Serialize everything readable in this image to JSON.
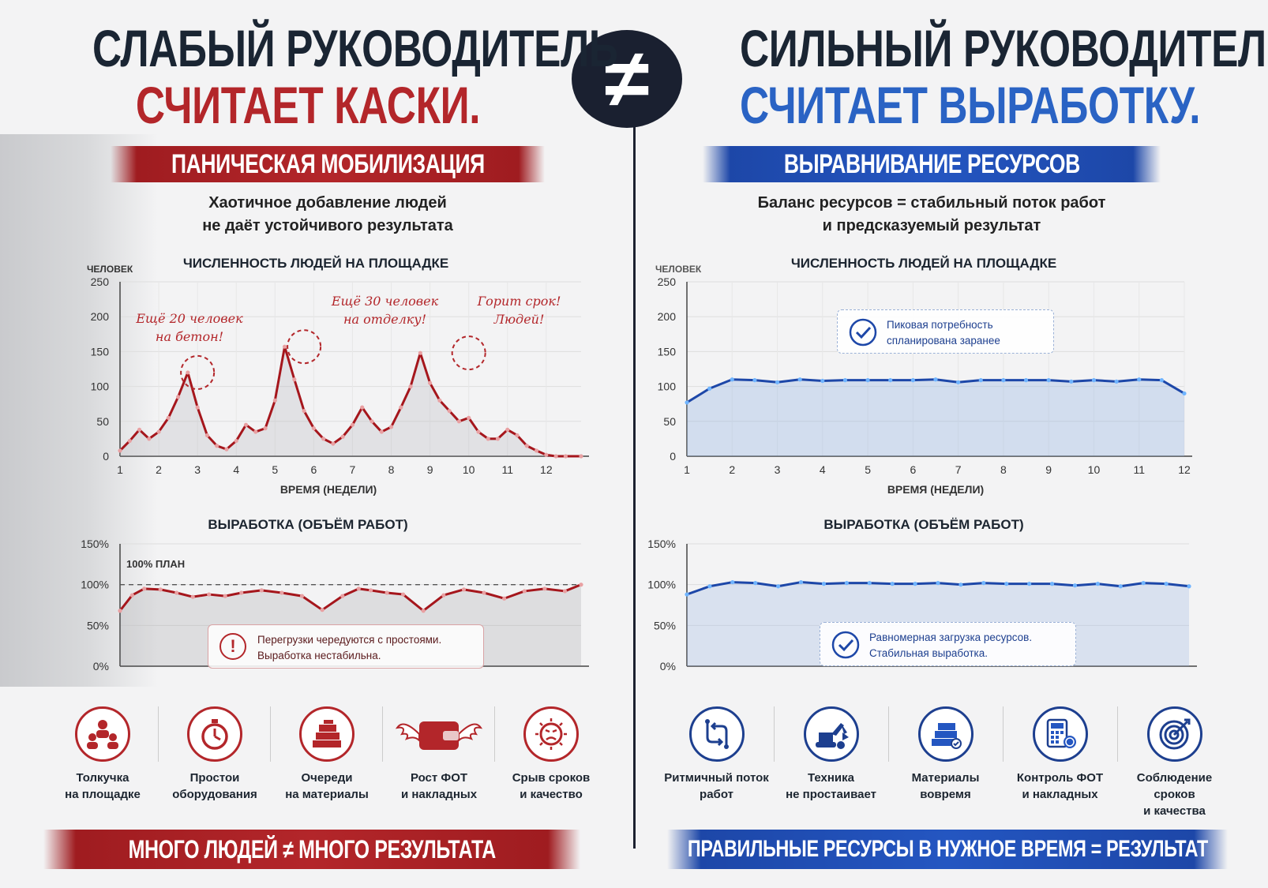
{
  "center_symbol": "≠",
  "left": {
    "title_line1": "СЛАБЫЙ РУКОВОДИТЕЛЬ",
    "title_line2": "СЧИТАЕТ КАСКИ.",
    "banner": "ПАНИЧЕСКАЯ МОБИЛИЗАЦИЯ",
    "subtitle_line1": "Хаотичное добавление людей",
    "subtitle_line2": "не даёт устойчивого результата",
    "people_chart": {
      "title": "ЧИСЛЕННОСТЬ ЛЮДЕЙ НА ПЛОЩАДКЕ",
      "ylabel": "ЧЕЛОВЕК",
      "xlabel": "ВРЕМЯ (НЕДЕЛИ)",
      "annotations": [
        {
          "line1": "Ещё 20 человек",
          "line2": "на бетон!"
        },
        {
          "line1": "Ещё 30 человек",
          "line2": "на отделку!"
        },
        {
          "line1": "Горит срок!",
          "line2": "Людей!"
        }
      ]
    },
    "output_chart": {
      "title": "ВЫРАБОТКА (ОБЪЁМ РАБОТ)",
      "plan_label": "100% ПЛАН",
      "note_line1": "Перегрузки чередуются с простоями.",
      "note_line2": "Выработка нестабильна."
    },
    "icons": [
      {
        "icon": "crowd-icon",
        "line1": "Толкучка",
        "line2": "на площадке"
      },
      {
        "icon": "stopwatch-icon",
        "line1": "Простои",
        "line2": "оборудования"
      },
      {
        "icon": "materials-stack-icon",
        "line1": "Очереди",
        "line2": "на материалы"
      },
      {
        "icon": "flying-wallet-icon",
        "line1": "Рост ФОТ",
        "line2": "и накладных"
      },
      {
        "icon": "angry-face-icon",
        "line1": "Срыв сроков",
        "line2": "и качество"
      }
    ],
    "bottom_banner": "МНОГО ЛЮДЕЙ ≠ МНОГО РЕЗУЛЬТАТА"
  },
  "right": {
    "title_line1": "СИЛЬНЫЙ РУКОВОДИТЕЛЬ",
    "title_line2": "СЧИТАЕТ ВЫРАБОТКУ.",
    "banner": "ВЫРАВНИВАНИЕ РЕСУРСОВ",
    "subtitle_line1": "Баланс ресурсов = стабильный поток работ",
    "subtitle_line2": "и предсказуемый результат",
    "people_chart": {
      "title": "ЧИСЛЕННОСТЬ ЛЮДЕЙ НА ПЛОЩАДКЕ",
      "ylabel": "ЧЕЛОВЕК",
      "xlabel": "ВРЕМЯ (НЕДЕЛИ)",
      "note_line1": "Пиковая потребность",
      "note_line2": "спланирована заранее"
    },
    "output_chart": {
      "title": "ВЫРАБОТКА (ОБЪЁМ РАБОТ)",
      "note_line1": "Равномерная загрузка ресурсов.",
      "note_line2": "Стабильная выработка."
    },
    "icons": [
      {
        "icon": "flow-icon",
        "line1": "Ритмичный поток",
        "line2": "работ"
      },
      {
        "icon": "excavator-icon",
        "line1": "Техника",
        "line2": "не простаивает"
      },
      {
        "icon": "materials-icon",
        "line1": "Материалы",
        "line2": "вовремя"
      },
      {
        "icon": "calculator-coins-icon",
        "line1": "Контроль ФОТ",
        "line2": "и накладных"
      },
      {
        "icon": "target-icon",
        "line1": "Соблюдение сроков",
        "line2": "и качества"
      }
    ],
    "bottom_banner": "ПРАВИЛЬНЫЕ РЕСУРСЫ В НУЖНОЕ ВРЕМЯ = РЕЗУЛЬТАТ"
  },
  "colors": {
    "red": "#b3262a",
    "blue": "#2456c1",
    "dark": "#1a2533"
  },
  "chart_data": [
    {
      "id": "left-people",
      "type": "line",
      "title": "ЧИСЛЕННОСТЬ ЛЮДЕЙ НА ПЛОЩАДКЕ",
      "xlabel": "ВРЕМЯ (НЕДЕЛИ)",
      "ylabel": "ЧЕЛОВЕК",
      "xlim": [
        1,
        12.9
      ],
      "ylim": [
        0,
        250
      ],
      "yticks": [
        0,
        50,
        100,
        150,
        200,
        250
      ],
      "xticks": [
        1,
        2,
        3,
        4,
        5,
        6,
        7,
        8,
        9,
        10,
        11,
        12
      ],
      "x": [
        1,
        1.25,
        1.5,
        1.75,
        2,
        2.25,
        2.5,
        2.75,
        3,
        3.25,
        3.5,
        3.75,
        4,
        4.25,
        4.5,
        4.75,
        5,
        5.25,
        5.5,
        5.75,
        6,
        6.25,
        6.5,
        6.75,
        7,
        7.25,
        7.5,
        7.75,
        8,
        8.25,
        8.5,
        8.75,
        9,
        9.25,
        9.5,
        9.75,
        10,
        10.25,
        10.5,
        10.75,
        11,
        11.25,
        11.5,
        11.75,
        12,
        12.25,
        12.5,
        12.9
      ],
      "y": [
        8,
        22,
        38,
        25,
        35,
        55,
        85,
        120,
        70,
        30,
        15,
        10,
        22,
        45,
        35,
        40,
        80,
        157,
        110,
        65,
        40,
        25,
        18,
        28,
        45,
        70,
        50,
        35,
        42,
        70,
        100,
        148,
        105,
        80,
        65,
        50,
        55,
        35,
        25,
        25,
        38,
        30,
        15,
        8,
        2,
        0,
        0,
        0
      ],
      "grid": true
    },
    {
      "id": "left-output",
      "type": "line",
      "title": "ВЫРАБОТКА (ОБЪЁМ РАБОТ)",
      "ylim": [
        0,
        150
      ],
      "yticks": [
        "0%",
        "50%",
        "100%",
        "150%"
      ],
      "plan_line": 100,
      "x": [
        1,
        1.3,
        1.6,
        2,
        2.4,
        2.8,
        3.2,
        3.6,
        4,
        4.5,
        5,
        5.5,
        6,
        6.5,
        6.9,
        7.2,
        7.6,
        8,
        8.5,
        9,
        9.5,
        10,
        10.5,
        11,
        11.5,
        12,
        12.4
      ],
      "y": [
        68,
        87,
        95,
        94,
        90,
        85,
        88,
        86,
        90,
        93,
        90,
        86,
        69,
        86,
        95,
        93,
        90,
        88,
        68,
        87,
        94,
        90,
        83,
        92,
        95,
        92,
        100
      ],
      "grid": true
    },
    {
      "id": "right-people",
      "type": "area",
      "title": "ЧИСЛЕННОСТЬ ЛЮДЕЙ НА ПЛОЩАДКЕ",
      "xlabel": "ВРЕМЯ (НЕДЕЛИ)",
      "ylabel": "ЧЕЛОВЕК",
      "xlim": [
        1,
        12
      ],
      "ylim": [
        0,
        250
      ],
      "yticks": [
        0,
        50,
        100,
        150,
        200,
        250
      ],
      "xticks": [
        1,
        2,
        3,
        4,
        5,
        6,
        7,
        8,
        9,
        10,
        11,
        12
      ],
      "x": [
        1,
        1.5,
        2,
        2.5,
        3,
        3.5,
        4,
        4.5,
        5,
        5.5,
        6,
        6.5,
        7,
        7.5,
        8,
        8.5,
        9,
        9.5,
        10,
        10.5,
        11,
        11.5,
        12
      ],
      "y": [
        77,
        97,
        110,
        109,
        106,
        110,
        108,
        109,
        109,
        109,
        109,
        110,
        106,
        109,
        109,
        109,
        109,
        107,
        109,
        107,
        110,
        109,
        90
      ],
      "grid": true
    },
    {
      "id": "right-output",
      "type": "area",
      "title": "ВЫРАБОТКА (ОБЪЁМ РАБОТ)",
      "ylim": [
        0,
        150
      ],
      "yticks": [
        "0%",
        "50%",
        "100%",
        "150%"
      ],
      "x": [
        1,
        1.5,
        2,
        2.5,
        3,
        3.5,
        4,
        4.5,
        5,
        5.5,
        6,
        6.5,
        7,
        7.5,
        8,
        8.5,
        9,
        9.5,
        10,
        10.5,
        11,
        11.5,
        12
      ],
      "y": [
        88,
        98,
        103,
        102,
        98,
        103,
        101,
        102,
        102,
        101,
        101,
        102,
        100,
        102,
        101,
        101,
        101,
        99,
        101,
        98,
        102,
        101,
        98
      ],
      "grid": true
    }
  ]
}
